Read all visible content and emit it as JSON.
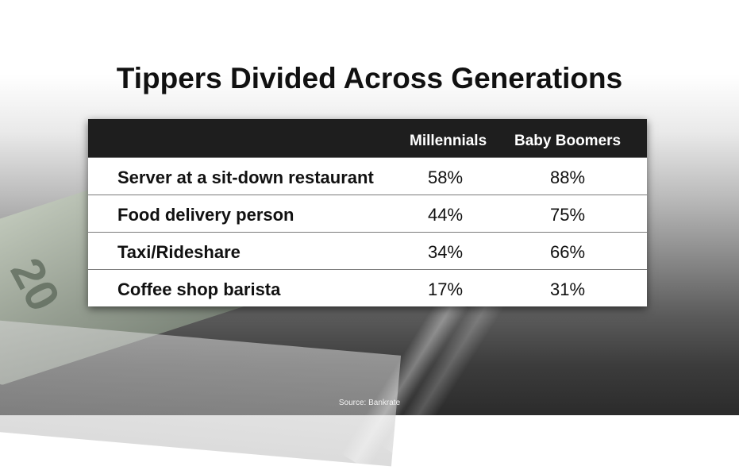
{
  "title": "Tippers Divided Across Generations",
  "source": "Source: Bankrate",
  "chart_data": {
    "type": "table",
    "columns": [
      "",
      "Millennials",
      "Baby Boomers"
    ],
    "rows": [
      {
        "label": "Server at a sit-down restaurant",
        "values": [
          "58%",
          "88%"
        ]
      },
      {
        "label": "Food delivery person",
        "values": [
          "44%",
          "75%"
        ]
      },
      {
        "label": "Taxi/Rideshare",
        "values": [
          "34%",
          "66%"
        ]
      },
      {
        "label": "Coffee shop barista",
        "values": [
          "17%",
          "31%"
        ]
      }
    ]
  },
  "background_note_icon": "tip-money-photo"
}
